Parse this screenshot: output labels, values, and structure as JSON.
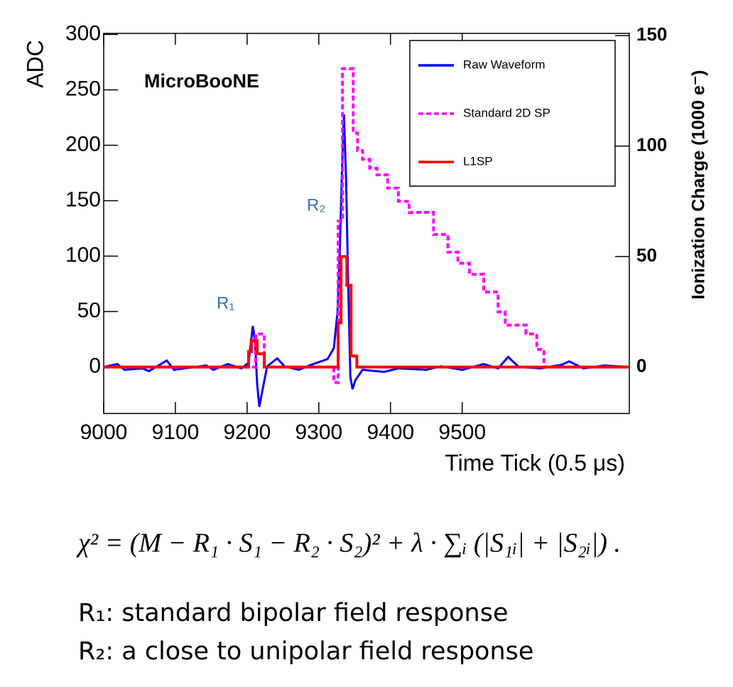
{
  "chart_data": {
    "type": "line",
    "xlabel": "Time Tick (0.5 μs)",
    "ylabel": "ADC",
    "y2label": "Ionization Charge (1000 e⁻)",
    "annotations": [
      "MicroBooNE",
      "R₂",
      "R₁"
    ],
    "xlim": [
      9000,
      9733
    ],
    "xticks": [
      9000,
      9100,
      9200,
      9300,
      9400,
      9500
    ],
    "ylim": [
      -42,
      301
    ],
    "yticks": [
      0,
      50,
      100,
      150,
      200,
      250,
      300
    ],
    "y2lim": [
      -21,
      151
    ],
    "y2ticks": [
      0,
      50,
      100,
      150
    ],
    "series": [
      {
        "name": "Raw Waveform",
        "color": "#0000ff",
        "dash": false,
        "step": false,
        "x": [
          9000,
          9019,
          9029,
          9054,
          9063,
          9088,
          9098,
          9113,
          9143,
          9153,
          9173,
          9192,
          9202,
          9208,
          9211,
          9214,
          9217,
          9222,
          9228,
          9242,
          9252,
          9272,
          9292,
          9312,
          9321,
          9326,
          9329,
          9332,
          9335,
          9338,
          9341,
          9344,
          9347,
          9351,
          9361,
          9391,
          9411,
          9450,
          9470,
          9500,
          9530,
          9550,
          9564,
          9579,
          9609,
          9639,
          9649,
          9669,
          9698,
          9733
        ],
        "values": [
          0,
          2.6,
          -2.6,
          -1.3,
          -3.8,
          5.8,
          -2.6,
          -1.3,
          1.3,
          -2.6,
          2.6,
          -1.3,
          3.8,
          37,
          23,
          -15,
          -36,
          -19,
          0.6,
          7.7,
          0.6,
          -2.6,
          2.6,
          7,
          17,
          49,
          100,
          170,
          228,
          170,
          74,
          -9,
          -20,
          -12,
          -2.6,
          -4.5,
          -1.3,
          -2.6,
          0.6,
          -2.6,
          2.6,
          -1.3,
          9,
          0,
          -1.3,
          2,
          5,
          -1.3,
          1.3,
          0
        ]
      },
      {
        "name": "Standard 2D SP",
        "color": "#ff00ff",
        "dash": true,
        "step": true,
        "axis": "y2",
        "x": [
          9000,
          9212,
          9224,
          9321,
          9327,
          9333,
          9341,
          9348,
          9354,
          9361,
          9371,
          9381,
          9396,
          9411,
          9426,
          9450,
          9460,
          9480,
          9494,
          9510,
          9530,
          9550,
          9560,
          9589,
          9604,
          9614,
          9733
        ],
        "values": [
          0,
          15,
          0,
          -7,
          66,
          135,
          135,
          106,
          98,
          94,
          90,
          87,
          81,
          75,
          70,
          70,
          60,
          52,
          47,
          42,
          34,
          25,
          19,
          15,
          8,
          0,
          0
        ]
      },
      {
        "name": "L1SP",
        "color": "#ff0000",
        "dash": false,
        "step": true,
        "axis": "y2",
        "x": [
          9000,
          9202,
          9206,
          9214,
          9224,
          9327,
          9331,
          9339,
          9345,
          9353,
          9733
        ],
        "values": [
          0,
          7,
          12,
          6,
          0,
          20,
          50,
          37,
          5,
          0,
          0
        ]
      }
    ],
    "legend": "upper right"
  },
  "equation": "χ² = (M − R₁ · S₁ − R₂ · S₂)² + λ · ∑ᵢ (|S₁ᵢ| + |S₂ᵢ|) .",
  "notes": [
    "R₁: standard bipolar field response",
    "R₂: a close to unipolar field response"
  ]
}
